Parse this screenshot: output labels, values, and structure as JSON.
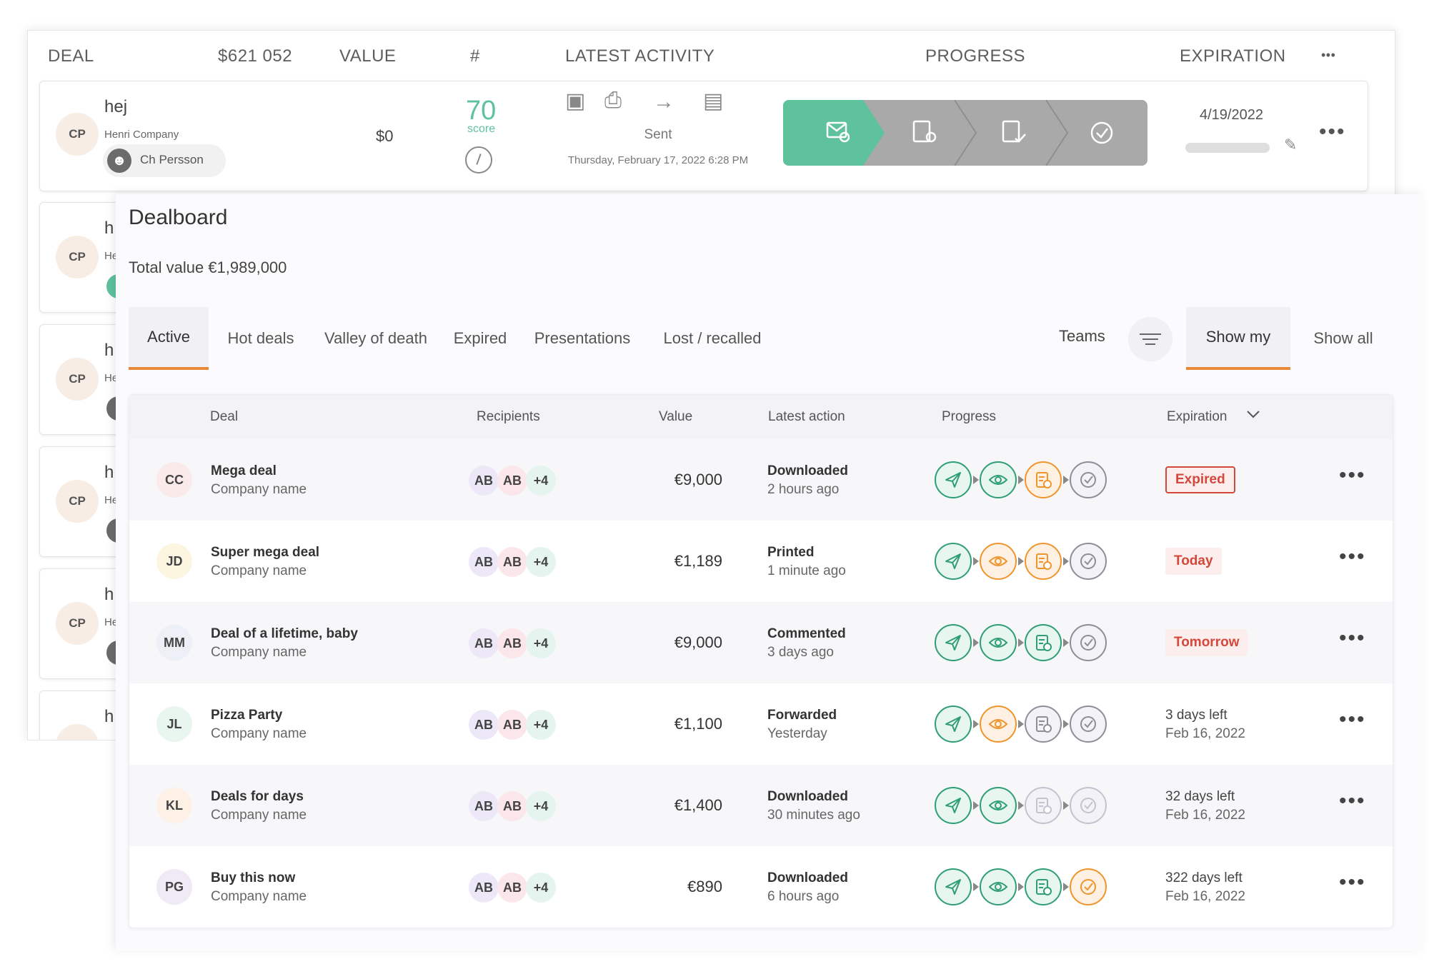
{
  "background": {
    "header": {
      "deal": "DEAL",
      "total": "$621 052",
      "value": "VALUE",
      "number": "#",
      "latest_activity": "LATEST ACTIVITY",
      "progress": "PROGRESS",
      "expiration": "EXPIRATION",
      "more": "•••"
    },
    "first_card": {
      "avatar": "CP",
      "deal_name": "hej",
      "company": "Henri Company",
      "owner": "Ch Persson",
      "value": "$0",
      "score": "70",
      "score_label": "score",
      "activity_status": "Sent",
      "activity_time": "Thursday, February 17, 2022 6:28 PM",
      "expiration": "4/19/2022",
      "more": "•••"
    },
    "partial_cards": [
      {
        "avatar": "CP",
        "initial": "h",
        "company_snippet": "He"
      },
      {
        "avatar": "CP",
        "initial": "h",
        "company_snippet": "He"
      },
      {
        "avatar": "CP",
        "initial": "h",
        "company_snippet": "He"
      },
      {
        "avatar": "CP",
        "initial": "h",
        "company_snippet": "He"
      },
      {
        "avatar": "",
        "initial": "h",
        "company_snippet": ""
      }
    ],
    "colors": {
      "progress_active": "#5ec29d",
      "progress_inactive": "#a9a9a9",
      "score": "#5ec29d"
    }
  },
  "dealboard": {
    "title": "Dealboard",
    "total_value": "Total value €1,989,000",
    "tabs": [
      "Active",
      "Hot deals",
      "Valley of death",
      "Expired",
      "Presentations",
      "Lost / recalled"
    ],
    "active_tab": "Active",
    "teams_label": "Teams",
    "filter_icon": "filter-lines-icon",
    "show_my": "Show my",
    "show_all": "Show all",
    "columns": {
      "deal": "Deal",
      "recipients": "Recipients",
      "value": "Value",
      "latest_action": "Latest action",
      "progress": "Progress",
      "expiration": "Expiration"
    },
    "rows": [
      {
        "initials": "CC",
        "deal": "Mega deal",
        "company": "Company name",
        "recipients": [
          "AB",
          "AB",
          "+4"
        ],
        "value": "€9,000",
        "action": "Downloaded",
        "action_time": "2 hours ago",
        "progress": [
          "green",
          "green",
          "orange",
          "gray"
        ],
        "exp_badge": "Expired",
        "exp_line1": "",
        "exp_line2": "",
        "more": "•••"
      },
      {
        "initials": "JD",
        "deal": "Super mega deal",
        "company": "Company name",
        "recipients": [
          "AB",
          "AB",
          "+4"
        ],
        "value": "€1,189",
        "action": "Printed",
        "action_time": "1 minute ago",
        "progress": [
          "green",
          "orange",
          "orange",
          "gray"
        ],
        "exp_badge": "Today",
        "exp_line1": "",
        "exp_line2": "",
        "more": "•••"
      },
      {
        "initials": "MM",
        "deal": "Deal of a lifetime, baby",
        "company": "Company name",
        "recipients": [
          "AB",
          "AB",
          "+4"
        ],
        "value": "€9,000",
        "action": "Commented",
        "action_time": "3 days ago",
        "progress": [
          "green",
          "green",
          "green",
          "gray"
        ],
        "exp_badge": "Tomorrow",
        "exp_line1": "",
        "exp_line2": "",
        "more": "•••"
      },
      {
        "initials": "JL",
        "deal": "Pizza Party",
        "company": "Company name",
        "recipients": [
          "AB",
          "AB",
          "+4"
        ],
        "value": "€1,100",
        "action": "Forwarded",
        "action_time": "Yesterday",
        "progress": [
          "green",
          "orange",
          "gray",
          "gray"
        ],
        "exp_badge": "",
        "exp_line1": "3 days left",
        "exp_line2": "Feb 16, 2022",
        "more": "•••"
      },
      {
        "initials": "KL",
        "deal": "Deals for days",
        "company": "Company name",
        "recipients": [
          "AB",
          "AB",
          "+4"
        ],
        "value": "€1,400",
        "action": "Downloaded",
        "action_time": "30 minutes ago",
        "progress": [
          "green",
          "green",
          "faded",
          "faded"
        ],
        "exp_badge": "",
        "exp_line1": "32 days left",
        "exp_line2": "Feb 16, 2022",
        "more": "•••"
      },
      {
        "initials": "PG",
        "deal": "Buy this now",
        "company": "Company name",
        "recipients": [
          "AB",
          "AB",
          "+4"
        ],
        "value": "€890",
        "action": "Downloaded",
        "action_time": "6 hours ago",
        "progress": [
          "green",
          "green",
          "green",
          "orange"
        ],
        "exp_badge": "",
        "exp_line1": "322 days left",
        "exp_line2": "Feb 16, 2022",
        "more": "•••"
      }
    ],
    "avatar_colors": {
      "CC": "#fbeaea",
      "JD": "#fcf6e0",
      "MM": "#eef0f7",
      "JL": "#e9f6f0",
      "KL": "#fdf1e6",
      "PG": "#efeaf6"
    },
    "recipient_colors": [
      "#ece8f7",
      "#fbe6ea",
      "#e6f4ef"
    ],
    "step_colors": {
      "green": "#2f9e74",
      "orange": "#f0952c",
      "gray": "#8e8e9a",
      "faded": "#c3c3d0"
    },
    "badge_colors": {
      "Expired": {
        "bg": "#fbeeed",
        "fg": "#d4483c",
        "border": "#d4483c"
      },
      "Today": {
        "bg": "#fbeeed",
        "fg": "#d4483c",
        "border": ""
      },
      "Tomorrow": {
        "bg": "#fbeeed",
        "fg": "#d4483c",
        "border": ""
      }
    },
    "accent": "#e8893a"
  }
}
